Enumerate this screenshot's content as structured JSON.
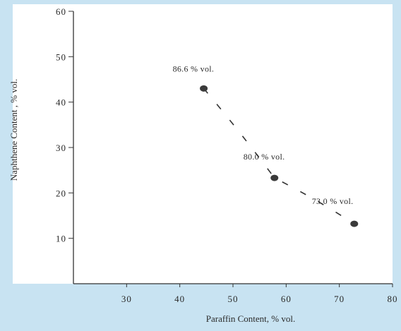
{
  "chart_data": {
    "type": "scatter",
    "title": "",
    "xlabel": "Paraffin Content, % vol.",
    "ylabel": "Naphthene Content , % vol.",
    "xlim": [
      20,
      80
    ],
    "ylim": [
      0,
      60
    ],
    "x_ticks": [
      30,
      40,
      50,
      60,
      70,
      80
    ],
    "x_tick_labels": [
      "30",
      "40",
      "50",
      "60",
      "70",
      "80"
    ],
    "y_ticks": [
      10,
      20,
      30,
      40,
      50,
      60
    ],
    "y_tick_labels": [
      "10",
      "20",
      "30",
      "40",
      "50",
      "60"
    ],
    "grid": false,
    "trend_line": "dashed",
    "series": [
      {
        "x": [
          44.5,
          57.8,
          72.8
        ],
        "y": [
          43.0,
          23.3,
          13.2
        ],
        "point_labels": [
          "86.6 % vol.",
          "80.0 % vol.",
          "73.0 % vol."
        ]
      }
    ],
    "colors": {
      "panel": "#ffffff",
      "background": "#c8e3f2",
      "marker": "#3a3a3a",
      "line": "#333333"
    }
  }
}
